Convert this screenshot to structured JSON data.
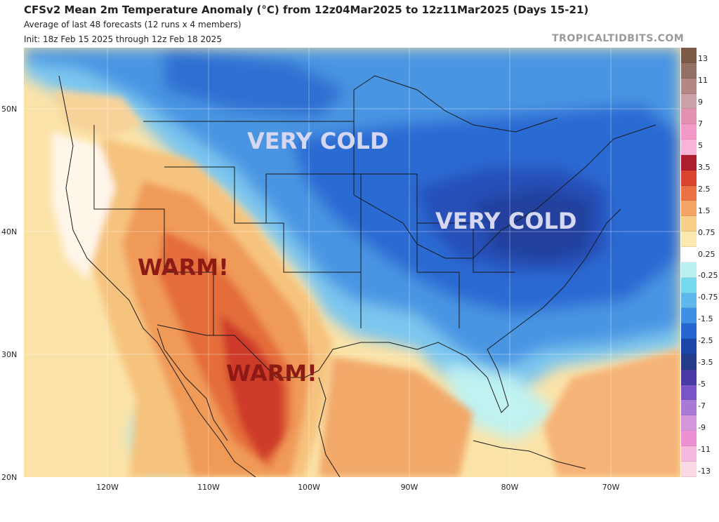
{
  "header": {
    "title": "CFSv2 Mean 2m Temperature Anomaly (°C) from 12z04Mar2025 to 12z11Mar2025 (Days 15-21)",
    "subtitle": "Average of last 48 forecasts (12 runs x 4 members)",
    "init": "Init: 18z Feb 15 2025 through 12z Feb 18 2025",
    "brand": "TROPICALTIDBITS.COM"
  },
  "axes": {
    "lon_ticks": [
      "120W",
      "110W",
      "100W",
      "90W",
      "80W",
      "70W"
    ],
    "lat_ticks": [
      "50N",
      "40N",
      "30N",
      "20N"
    ]
  },
  "annotations": {
    "cold_north": "VERY COLD",
    "cold_east": "VERY COLD",
    "warm_west": "WARM!",
    "warm_south": "WARM!"
  },
  "colorbar": {
    "labels": [
      "13",
      "11",
      "9",
      "7",
      "5",
      "3.5",
      "2.5",
      "1.5",
      "0.75",
      "0.25",
      "-0.25",
      "-0.75",
      "-1.5",
      "-2.5",
      "-3.5",
      "-5",
      "-7",
      "-9",
      "-11",
      "-13"
    ],
    "colors": [
      "#7d5a48",
      "#946f63",
      "#b38784",
      "#c9a1a6",
      "#e291b2",
      "#f49ac8",
      "#f8b4d8",
      "#ac1e2e",
      "#d8442d",
      "#ec7246",
      "#f4a465",
      "#f8cf88",
      "#fbe9af",
      "#ffffff",
      "#b9f0f0",
      "#76d8ee",
      "#5fb8ec",
      "#3f8fe4",
      "#2666d0",
      "#1c47a8",
      "#243c8a",
      "#4a3aa6",
      "#7b54c8",
      "#a879d6",
      "#d597dc",
      "#ee91d2",
      "#f7b8dd",
      "#fbd9e4"
    ]
  },
  "colors": {
    "land_outline": "#1a1a1a",
    "warm_text": "#8e1a16",
    "cold_text": "#d6d8f2"
  }
}
